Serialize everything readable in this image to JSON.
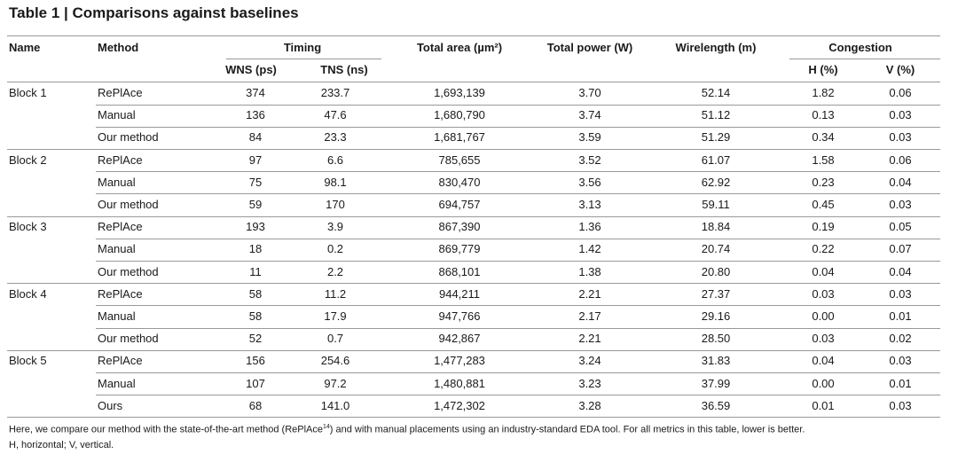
{
  "title": "Table 1 | Comparisons against baselines",
  "table": {
    "header": {
      "columns": [
        "Name",
        "Method",
        "Timing",
        "Total area (µm²)",
        "Total power (W)",
        "Wirelength (m)",
        "Congestion"
      ],
      "subcolumns": [
        "WNS (ps)",
        "TNS (ns)",
        "H (%)",
        "V (%)"
      ]
    },
    "blocks": [
      {
        "name": "Block 1",
        "rows": [
          [
            "RePlAce",
            "374",
            "233.7",
            "1,693,139",
            "3.70",
            "52.14",
            "1.82",
            "0.06"
          ],
          [
            "Manual",
            "136",
            "47.6",
            "1,680,790",
            "3.74",
            "51.12",
            "0.13",
            "0.03"
          ],
          [
            "Our method",
            "84",
            "23.3",
            "1,681,767",
            "3.59",
            "51.29",
            "0.34",
            "0.03"
          ]
        ]
      },
      {
        "name": "Block 2",
        "rows": [
          [
            "RePlAce",
            "97",
            "6.6",
            "785,655",
            "3.52",
            "61.07",
            "1.58",
            "0.06"
          ],
          [
            "Manual",
            "75",
            "98.1",
            "830,470",
            "3.56",
            "62.92",
            "0.23",
            "0.04"
          ],
          [
            "Our method",
            "59",
            "170",
            "694,757",
            "3.13",
            "59.11",
            "0.45",
            "0.03"
          ]
        ]
      },
      {
        "name": "Block 3",
        "rows": [
          [
            "RePlAce",
            "193",
            "3.9",
            "867,390",
            "1.36",
            "18.84",
            "0.19",
            "0.05"
          ],
          [
            "Manual",
            "18",
            "0.2",
            "869,779",
            "1.42",
            "20.74",
            "0.22",
            "0.07"
          ],
          [
            "Our method",
            "11",
            "2.2",
            "868,101",
            "1.38",
            "20.80",
            "0.04",
            "0.04"
          ]
        ]
      },
      {
        "name": "Block 4",
        "rows": [
          [
            "RePlAce",
            "58",
            "11.2",
            "944,211",
            "2.21",
            "27.37",
            "0.03",
            "0.03"
          ],
          [
            "Manual",
            "58",
            "17.9",
            "947,766",
            "2.17",
            "29.16",
            "0.00",
            "0.01"
          ],
          [
            "Our method",
            "52",
            "0.7",
            "942,867",
            "2.21",
            "28.50",
            "0.03",
            "0.02"
          ]
        ]
      },
      {
        "name": "Block 5",
        "rows": [
          [
            "RePlAce",
            "156",
            "254.6",
            "1,477,283",
            "3.24",
            "31.83",
            "0.04",
            "0.03"
          ],
          [
            "Manual",
            "107",
            "97.2",
            "1,480,881",
            "3.23",
            "37.99",
            "0.00",
            "0.01"
          ],
          [
            "Ours",
            "68",
            "141.0",
            "1,472,302",
            "3.28",
            "36.59",
            "0.01",
            "0.03"
          ]
        ]
      }
    ]
  },
  "footnote": {
    "before": "Here, we compare our method with the state-of-the-art method (RePlAce",
    "superscript": "14",
    "after": ") and with manual placements using an industry-standard EDA tool. For all metrics in this table, lower is better.",
    "line2": "H, horizontal; V, vertical."
  }
}
